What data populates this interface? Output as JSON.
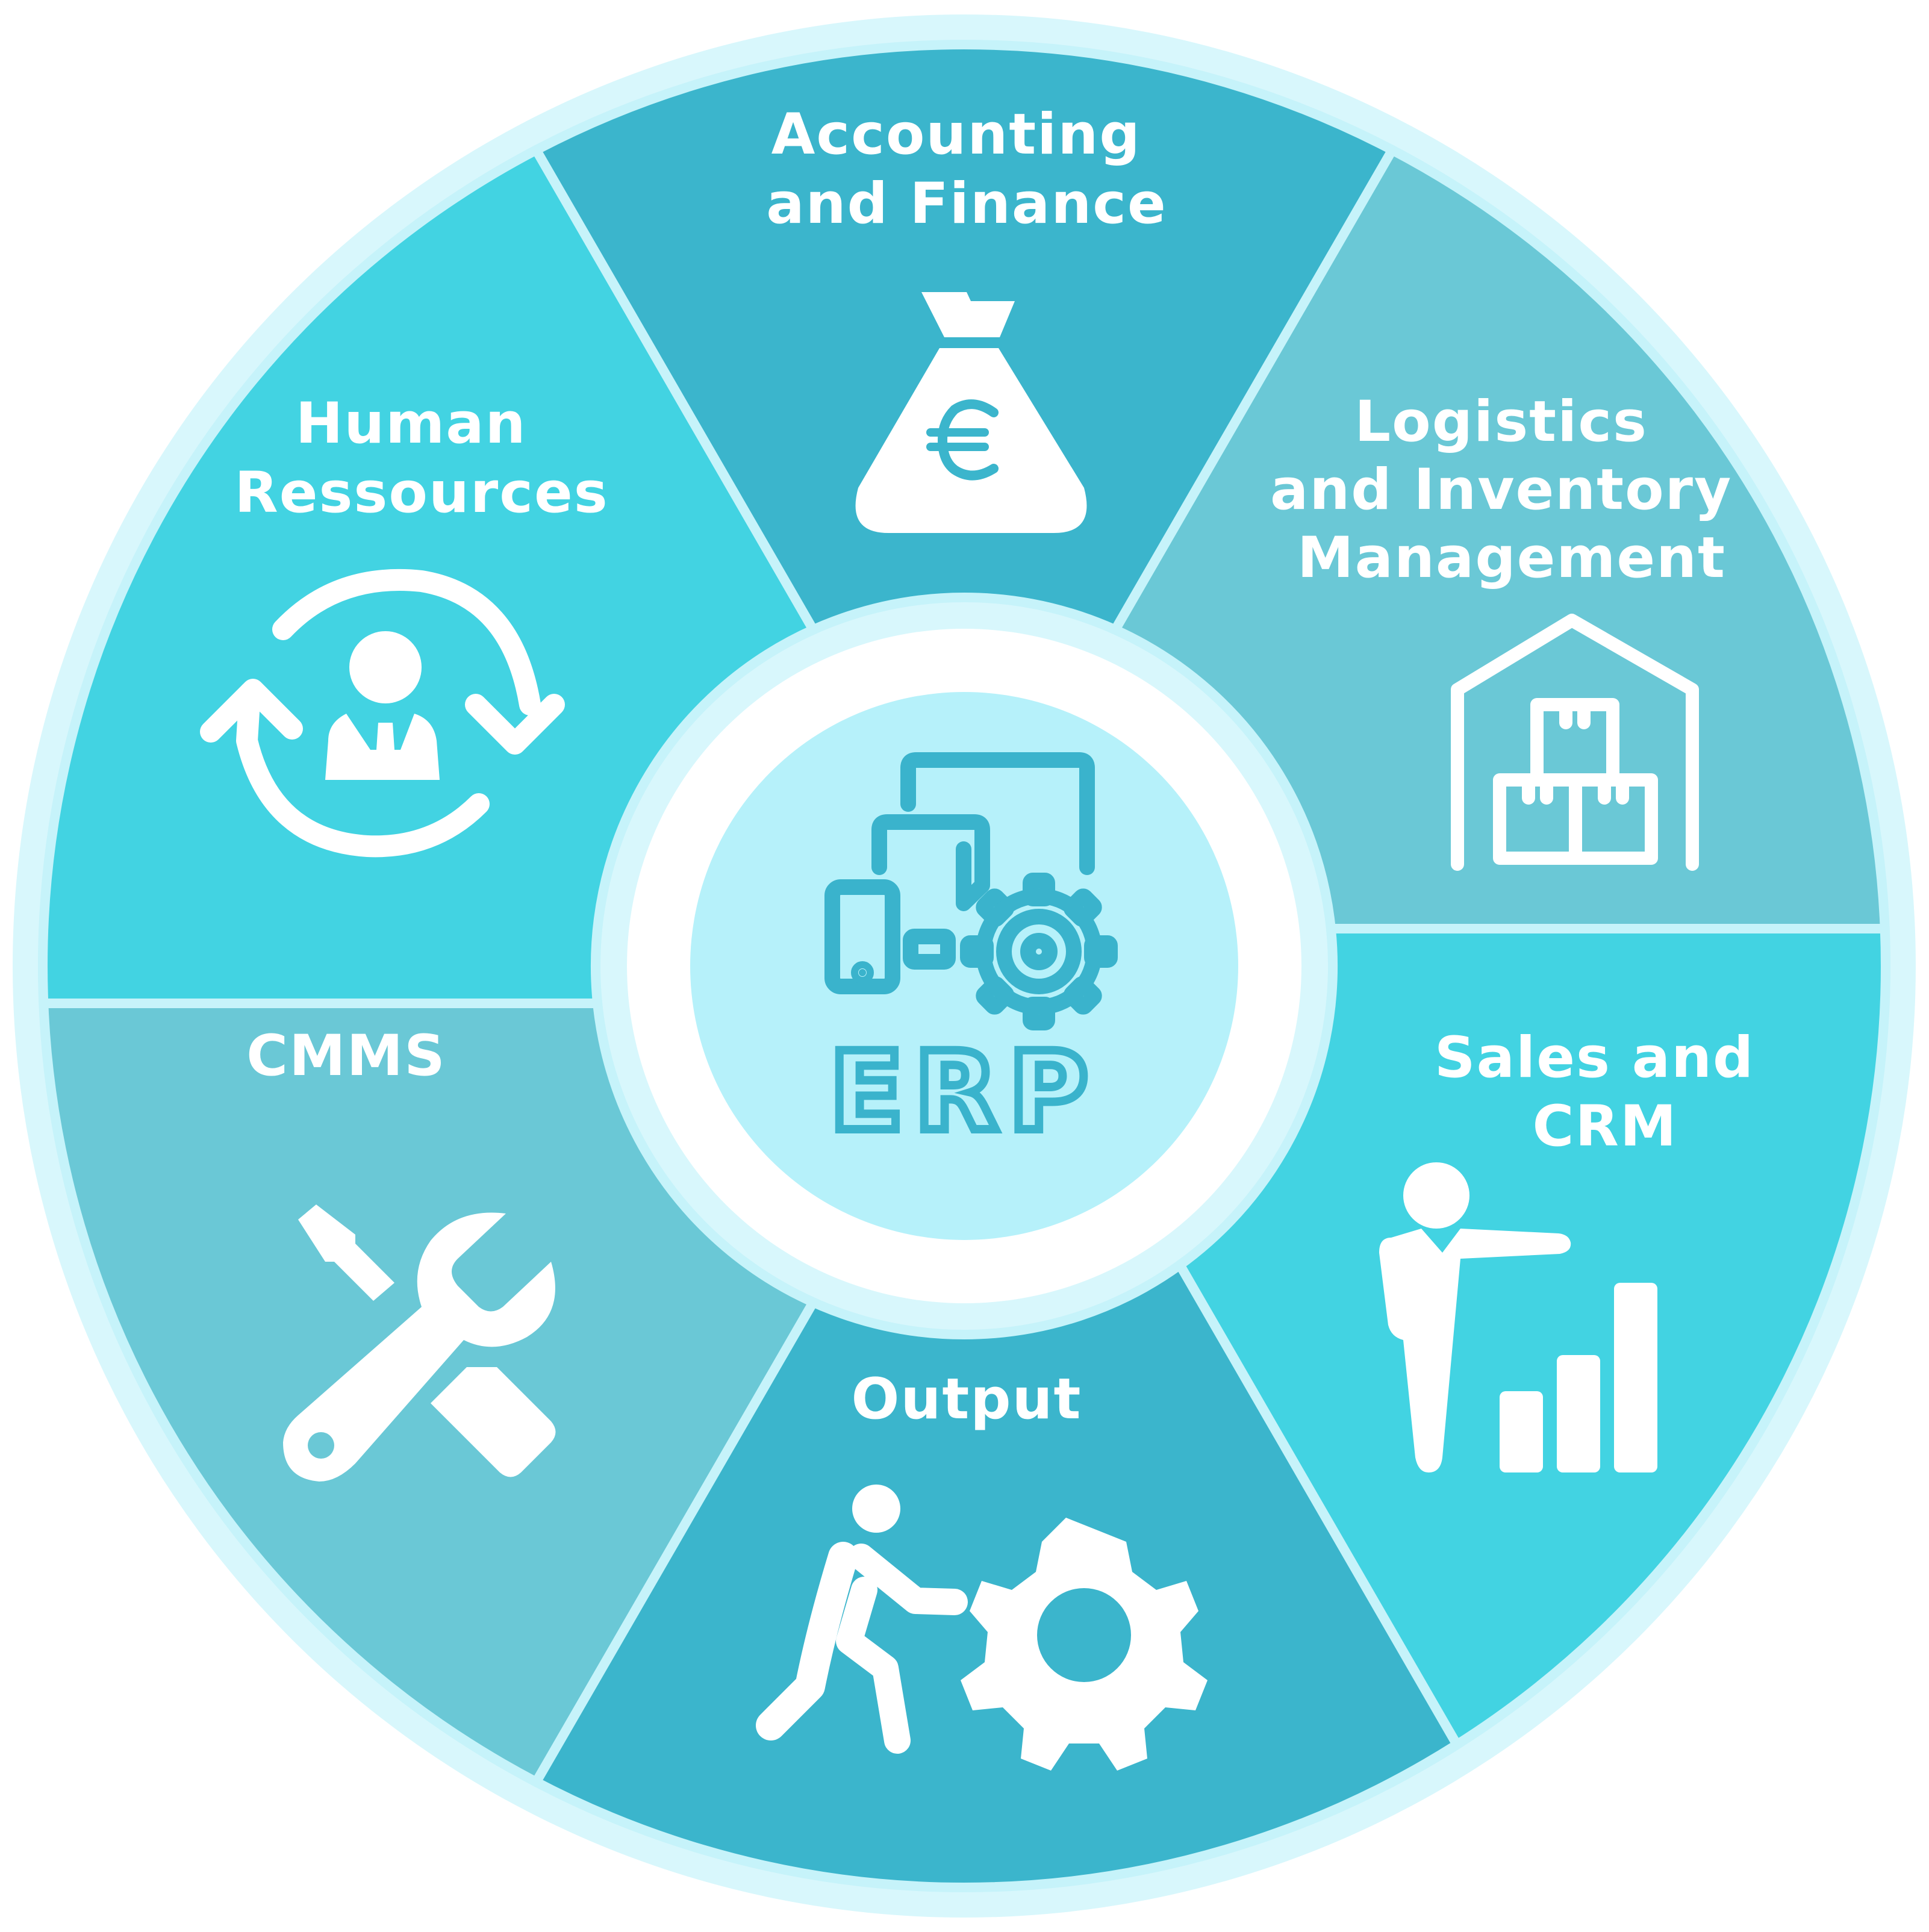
{
  "center": {
    "label": "ERP",
    "icon": "devices-gear-icon"
  },
  "segments": [
    {
      "id": "accounting",
      "lines": [
        "Accounting",
        "and Finance"
      ],
      "icon": "money-bag-euro-icon",
      "color": "#3bb5cc"
    },
    {
      "id": "logistics",
      "lines": [
        "Logistics",
        "and Inventory",
        "Management"
      ],
      "icon": "warehouse-icon",
      "color": "#6ac8d6"
    },
    {
      "id": "sales",
      "lines": [
        "Sales and",
        "CRM"
      ],
      "icon": "presenter-bar-chart-icon",
      "color": "#42d3e2"
    },
    {
      "id": "output",
      "lines": [
        "Output"
      ],
      "icon": "person-pushing-gear-icon",
      "color": "#3bb5cc"
    },
    {
      "id": "cmms",
      "lines": [
        "CMMS"
      ],
      "icon": "wrench-screwdriver-icon",
      "color": "#6ac8d6"
    },
    {
      "id": "hr",
      "lines": [
        "Human",
        "Ressources"
      ],
      "icon": "person-cycle-icon",
      "color": "#42d3e2"
    }
  ],
  "colors": {
    "outer_ring": "#d8f7fc",
    "center_ring": "#ffffff",
    "center_disc": "#b6f1fa",
    "gap": "#d8f7fc",
    "icon_color": "#ffffff",
    "center_icon_color": "#3ab3cc"
  }
}
